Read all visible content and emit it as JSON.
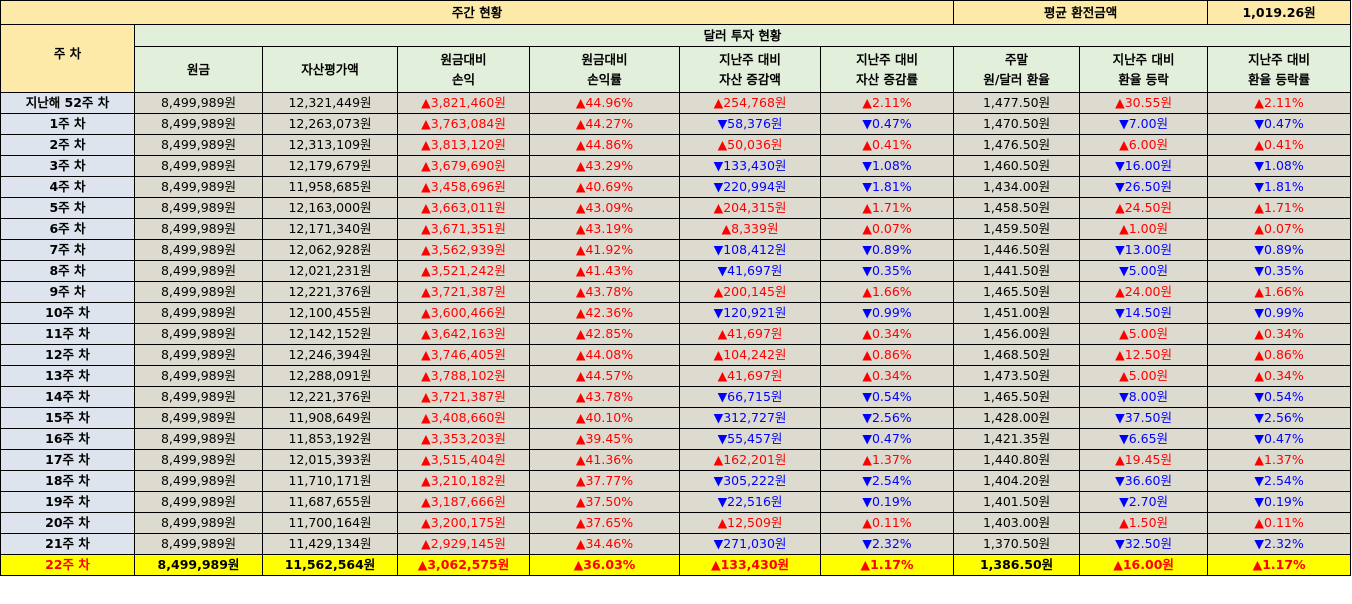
{
  "header": {
    "weekly_status": "주간 현황",
    "avg_exchange_label": "평균 환전금액",
    "avg_exchange_value": "1,019.26원",
    "dollar_status": "달러 투자 현황",
    "week_col": "주 차"
  },
  "columns": [
    [
      "원금"
    ],
    [
      "자산평가액"
    ],
    [
      "원금대비",
      "손익"
    ],
    [
      "원금대비",
      "손익률"
    ],
    [
      "지난주 대비",
      "자산 증감액"
    ],
    [
      "지난주 대비",
      "자산 증감률"
    ],
    [
      "주말",
      "원/달러 환율"
    ],
    [
      "지난주 대비",
      "환율 등락"
    ],
    [
      "지난주 대비",
      "환율 등락률"
    ]
  ],
  "rows": [
    {
      "week": "지난해 52주 차",
      "principal": "8,499,989원",
      "asset": "12,321,449원",
      "pl": "▲3,821,460원",
      "pl_dir": "up",
      "plr": "▲44.96%",
      "plr_dir": "up",
      "chg": "▲254,768원",
      "chg_dir": "up",
      "chgr": "▲2.11%",
      "chgr_dir": "up",
      "rate": "1,477.50원",
      "rchg": "▲30.55원",
      "rchg_dir": "up",
      "rchgr": "▲2.11%",
      "rchgr_dir": "up"
    },
    {
      "week": "1주 차",
      "principal": "8,499,989원",
      "asset": "12,263,073원",
      "pl": "▲3,763,084원",
      "pl_dir": "up",
      "plr": "▲44.27%",
      "plr_dir": "up",
      "chg": "▼58,376원",
      "chg_dir": "down",
      "chgr": "▼0.47%",
      "chgr_dir": "down",
      "rate": "1,470.50원",
      "rchg": "▼7.00원",
      "rchg_dir": "down",
      "rchgr": "▼0.47%",
      "rchgr_dir": "down"
    },
    {
      "week": "2주 차",
      "principal": "8,499,989원",
      "asset": "12,313,109원",
      "pl": "▲3,813,120원",
      "pl_dir": "up",
      "plr": "▲44.86%",
      "plr_dir": "up",
      "chg": "▲50,036원",
      "chg_dir": "up",
      "chgr": "▲0.41%",
      "chgr_dir": "up",
      "rate": "1,476.50원",
      "rchg": "▲6.00원",
      "rchg_dir": "up",
      "rchgr": "▲0.41%",
      "rchgr_dir": "up"
    },
    {
      "week": "3주 차",
      "principal": "8,499,989원",
      "asset": "12,179,679원",
      "pl": "▲3,679,690원",
      "pl_dir": "up",
      "plr": "▲43.29%",
      "plr_dir": "up",
      "chg": "▼133,430원",
      "chg_dir": "down",
      "chgr": "▼1.08%",
      "chgr_dir": "down",
      "rate": "1,460.50원",
      "rchg": "▼16.00원",
      "rchg_dir": "down",
      "rchgr": "▼1.08%",
      "rchgr_dir": "down"
    },
    {
      "week": "4주 차",
      "principal": "8,499,989원",
      "asset": "11,958,685원",
      "pl": "▲3,458,696원",
      "pl_dir": "up",
      "plr": "▲40.69%",
      "plr_dir": "up",
      "chg": "▼220,994원",
      "chg_dir": "down",
      "chgr": "▼1.81%",
      "chgr_dir": "down",
      "rate": "1,434.00원",
      "rchg": "▼26.50원",
      "rchg_dir": "down",
      "rchgr": "▼1.81%",
      "rchgr_dir": "down"
    },
    {
      "week": "5주 차",
      "principal": "8,499,989원",
      "asset": "12,163,000원",
      "pl": "▲3,663,011원",
      "pl_dir": "up",
      "plr": "▲43.09%",
      "plr_dir": "up",
      "chg": "▲204,315원",
      "chg_dir": "up",
      "chgr": "▲1.71%",
      "chgr_dir": "up",
      "rate": "1,458.50원",
      "rchg": "▲24.50원",
      "rchg_dir": "up",
      "rchgr": "▲1.71%",
      "rchgr_dir": "up"
    },
    {
      "week": "6주 차",
      "principal": "8,499,989원",
      "asset": "12,171,340원",
      "pl": "▲3,671,351원",
      "pl_dir": "up",
      "plr": "▲43.19%",
      "plr_dir": "up",
      "chg": "▲8,339원",
      "chg_dir": "up",
      "chgr": "▲0.07%",
      "chgr_dir": "up",
      "rate": "1,459.50원",
      "rchg": "▲1.00원",
      "rchg_dir": "up",
      "rchgr": "▲0.07%",
      "rchgr_dir": "up"
    },
    {
      "week": "7주 차",
      "principal": "8,499,989원",
      "asset": "12,062,928원",
      "pl": "▲3,562,939원",
      "pl_dir": "up",
      "plr": "▲41.92%",
      "plr_dir": "up",
      "chg": "▼108,412원",
      "chg_dir": "down",
      "chgr": "▼0.89%",
      "chgr_dir": "down",
      "rate": "1,446.50원",
      "rchg": "▼13.00원",
      "rchg_dir": "down",
      "rchgr": "▼0.89%",
      "rchgr_dir": "down"
    },
    {
      "week": "8주 차",
      "principal": "8,499,989원",
      "asset": "12,021,231원",
      "pl": "▲3,521,242원",
      "pl_dir": "up",
      "plr": "▲41.43%",
      "plr_dir": "up",
      "chg": "▼41,697원",
      "chg_dir": "down",
      "chgr": "▼0.35%",
      "chgr_dir": "down",
      "rate": "1,441.50원",
      "rchg": "▼5.00원",
      "rchg_dir": "down",
      "rchgr": "▼0.35%",
      "rchgr_dir": "down"
    },
    {
      "week": "9주 차",
      "principal": "8,499,989원",
      "asset": "12,221,376원",
      "pl": "▲3,721,387원",
      "pl_dir": "up",
      "plr": "▲43.78%",
      "plr_dir": "up",
      "chg": "▲200,145원",
      "chg_dir": "up",
      "chgr": "▲1.66%",
      "chgr_dir": "up",
      "rate": "1,465.50원",
      "rchg": "▲24.00원",
      "rchg_dir": "up",
      "rchgr": "▲1.66%",
      "rchgr_dir": "up"
    },
    {
      "week": "10주 차",
      "principal": "8,499,989원",
      "asset": "12,100,455원",
      "pl": "▲3,600,466원",
      "pl_dir": "up",
      "plr": "▲42.36%",
      "plr_dir": "up",
      "chg": "▼120,921원",
      "chg_dir": "down",
      "chgr": "▼0.99%",
      "chgr_dir": "down",
      "rate": "1,451.00원",
      "rchg": "▼14.50원",
      "rchg_dir": "down",
      "rchgr": "▼0.99%",
      "rchgr_dir": "down"
    },
    {
      "week": "11주 차",
      "principal": "8,499,989원",
      "asset": "12,142,152원",
      "pl": "▲3,642,163원",
      "pl_dir": "up",
      "plr": "▲42.85%",
      "plr_dir": "up",
      "chg": "▲41,697원",
      "chg_dir": "up",
      "chgr": "▲0.34%",
      "chgr_dir": "up",
      "rate": "1,456.00원",
      "rchg": "▲5.00원",
      "rchg_dir": "up",
      "rchgr": "▲0.34%",
      "rchgr_dir": "up"
    },
    {
      "week": "12주 차",
      "principal": "8,499,989원",
      "asset": "12,246,394원",
      "pl": "▲3,746,405원",
      "pl_dir": "up",
      "plr": "▲44.08%",
      "plr_dir": "up",
      "chg": "▲104,242원",
      "chg_dir": "up",
      "chgr": "▲0.86%",
      "chgr_dir": "up",
      "rate": "1,468.50원",
      "rchg": "▲12.50원",
      "rchg_dir": "up",
      "rchgr": "▲0.86%",
      "rchgr_dir": "up"
    },
    {
      "week": "13주 차",
      "principal": "8,499,989원",
      "asset": "12,288,091원",
      "pl": "▲3,788,102원",
      "pl_dir": "up",
      "plr": "▲44.57%",
      "plr_dir": "up",
      "chg": "▲41,697원",
      "chg_dir": "up",
      "chgr": "▲0.34%",
      "chgr_dir": "up",
      "rate": "1,473.50원",
      "rchg": "▲5.00원",
      "rchg_dir": "up",
      "rchgr": "▲0.34%",
      "rchgr_dir": "up"
    },
    {
      "week": "14주 차",
      "principal": "8,499,989원",
      "asset": "12,221,376원",
      "pl": "▲3,721,387원",
      "pl_dir": "up",
      "plr": "▲43.78%",
      "plr_dir": "up",
      "chg": "▼66,715원",
      "chg_dir": "down",
      "chgr": "▼0.54%",
      "chgr_dir": "down",
      "rate": "1,465.50원",
      "rchg": "▼8.00원",
      "rchg_dir": "down",
      "rchgr": "▼0.54%",
      "rchgr_dir": "down"
    },
    {
      "week": "15주 차",
      "principal": "8,499,989원",
      "asset": "11,908,649원",
      "pl": "▲3,408,660원",
      "pl_dir": "up",
      "plr": "▲40.10%",
      "plr_dir": "up",
      "chg": "▼312,727원",
      "chg_dir": "down",
      "chgr": "▼2.56%",
      "chgr_dir": "down",
      "rate": "1,428.00원",
      "rchg": "▼37.50원",
      "rchg_dir": "down",
      "rchgr": "▼2.56%",
      "rchgr_dir": "down"
    },
    {
      "week": "16주 차",
      "principal": "8,499,989원",
      "asset": "11,853,192원",
      "pl": "▲3,353,203원",
      "pl_dir": "up",
      "plr": "▲39.45%",
      "plr_dir": "up",
      "chg": "▼55,457원",
      "chg_dir": "down",
      "chgr": "▼0.47%",
      "chgr_dir": "down",
      "rate": "1,421.35원",
      "rchg": "▼6.65원",
      "rchg_dir": "down",
      "rchgr": "▼0.47%",
      "rchgr_dir": "down"
    },
    {
      "week": "17주 차",
      "principal": "8,499,989원",
      "asset": "12,015,393원",
      "pl": "▲3,515,404원",
      "pl_dir": "up",
      "plr": "▲41.36%",
      "plr_dir": "up",
      "chg": "▲162,201원",
      "chg_dir": "up",
      "chgr": "▲1.37%",
      "chgr_dir": "up",
      "rate": "1,440.80원",
      "rchg": "▲19.45원",
      "rchg_dir": "up",
      "rchgr": "▲1.37%",
      "rchgr_dir": "up"
    },
    {
      "week": "18주 차",
      "principal": "8,499,989원",
      "asset": "11,710,171원",
      "pl": "▲3,210,182원",
      "pl_dir": "up",
      "plr": "▲37.77%",
      "plr_dir": "up",
      "chg": "▼305,222원",
      "chg_dir": "down",
      "chgr": "▼2.54%",
      "chgr_dir": "down",
      "rate": "1,404.20원",
      "rchg": "▼36.60원",
      "rchg_dir": "down",
      "rchgr": "▼2.54%",
      "rchgr_dir": "down"
    },
    {
      "week": "19주 차",
      "principal": "8,499,989원",
      "asset": "11,687,655원",
      "pl": "▲3,187,666원",
      "pl_dir": "up",
      "plr": "▲37.50%",
      "plr_dir": "up",
      "chg": "▼22,516원",
      "chg_dir": "down",
      "chgr": "▼0.19%",
      "chgr_dir": "down",
      "rate": "1,401.50원",
      "rchg": "▼2.70원",
      "rchg_dir": "down",
      "rchgr": "▼0.19%",
      "rchgr_dir": "down"
    },
    {
      "week": "20주 차",
      "principal": "8,499,989원",
      "asset": "11,700,164원",
      "pl": "▲3,200,175원",
      "pl_dir": "up",
      "plr": "▲37.65%",
      "plr_dir": "up",
      "chg": "▲12,509원",
      "chg_dir": "up",
      "chgr": "▲0.11%",
      "chgr_dir": "up",
      "rate": "1,403.00원",
      "rchg": "▲1.50원",
      "rchg_dir": "up",
      "rchgr": "▲0.11%",
      "rchgr_dir": "up"
    },
    {
      "week": "21주 차",
      "principal": "8,499,989원",
      "asset": "11,429,134원",
      "pl": "▲2,929,145원",
      "pl_dir": "up",
      "plr": "▲34.46%",
      "plr_dir": "up",
      "chg": "▼271,030원",
      "chg_dir": "down",
      "chgr": "▼2.32%",
      "chgr_dir": "down",
      "rate": "1,370.50원",
      "rchg": "▼32.50원",
      "rchg_dir": "down",
      "rchgr": "▼2.32%",
      "rchgr_dir": "down"
    },
    {
      "week": "22주 차",
      "principal": "8,499,989원",
      "asset": "11,562,564원",
      "pl": "▲3,062,575원",
      "pl_dir": "up",
      "plr": "▲36.03%",
      "plr_dir": "up",
      "chg": "▲133,430원",
      "chg_dir": "up",
      "chgr": "▲1.17%",
      "chgr_dir": "up",
      "rate": "1,386.50원",
      "rchg": "▲16.00원",
      "rchg_dir": "up",
      "rchgr": "▲1.17%",
      "rchgr_dir": "up"
    }
  ],
  "colors": {
    "up": "#ff0000",
    "down": "#0000ff",
    "highlight": "#ffff00",
    "header": "#fde9a8",
    "subheader": "#e2efda"
  }
}
